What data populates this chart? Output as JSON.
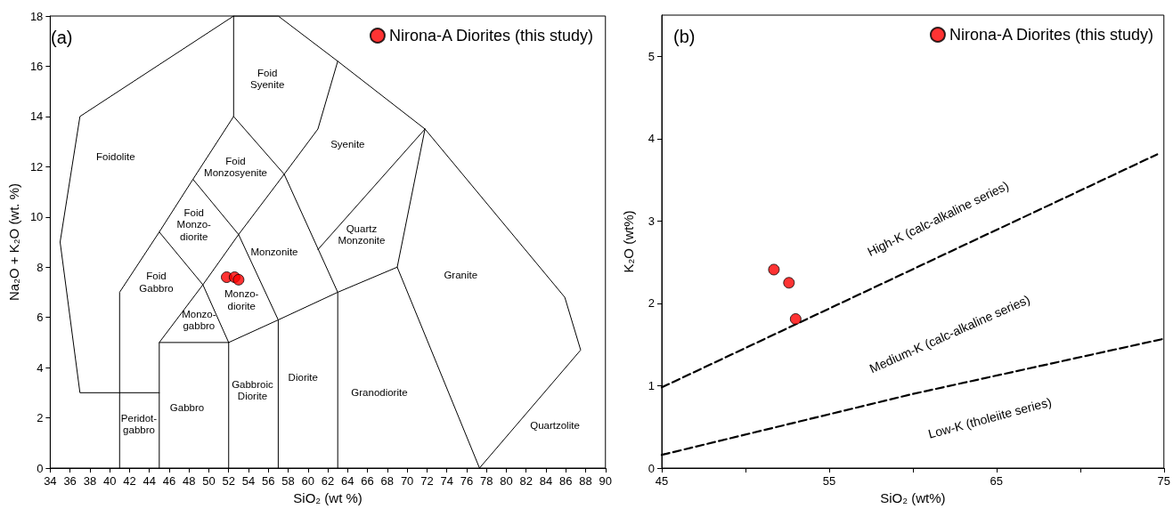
{
  "chart_data": [
    {
      "type": "scatter",
      "xlabel": "SiO₂ (wt %)",
      "ylabel": "Na₂O + K₂O (wt. %)",
      "xlim": [
        34,
        90
      ],
      "xticks": [
        34,
        36,
        38,
        40,
        42,
        44,
        46,
        48,
        50,
        52,
        54,
        56,
        58,
        60,
        62,
        64,
        66,
        68,
        70,
        72,
        74,
        76,
        78,
        80,
        82,
        84,
        86,
        88,
        90
      ],
      "ylim": [
        0,
        18
      ],
      "yticks": [
        0,
        2,
        4,
        6,
        8,
        10,
        12,
        14,
        16,
        18
      ],
      "grid": false,
      "legend": "top right",
      "line_style": "solid",
      "series": [
        {
          "name": "Nirona-A Diorites (this study)",
          "marker": "circle",
          "color": "#ff0000",
          "x": [
            51.8,
            52.6,
            53.0
          ],
          "values": [
            7.6,
            7.6,
            7.5
          ]
        },
        {
          "type": "line",
          "marker": "none",
          "color": "#000000",
          "x": [
            45,
            37,
            35,
            37,
            52.5,
            57,
            63,
            71.8,
            85.9,
            87.5,
            77.3
          ],
          "values": [
            3,
            3,
            9,
            14,
            18,
            18,
            16.2,
            13.5,
            6.8,
            4.7,
            0
          ]
        },
        {
          "type": "line",
          "marker": "none",
          "color": "#000000",
          "x": [
            41,
            41,
            45,
            48.4,
            52.5,
            52.5
          ],
          "values": [
            0,
            7,
            9.4,
            11.5,
            14,
            18
          ]
        },
        {
          "type": "line",
          "marker": "none",
          "color": "#000000",
          "x": [
            45,
            45,
            52,
            52
          ],
          "values": [
            0,
            5,
            5,
            0
          ]
        },
        {
          "type": "line",
          "marker": "none",
          "color": "#000000",
          "x": [
            45,
            49.4,
            45
          ],
          "values": [
            5,
            7.3,
            9.4
          ]
        },
        {
          "type": "line",
          "marker": "none",
          "color": "#000000",
          "x": [
            52,
            49.4,
            53,
            48.4
          ],
          "values": [
            5,
            7.3,
            9.3,
            11.5
          ]
        },
        {
          "type": "line",
          "marker": "none",
          "color": "#000000",
          "x": [
            52,
            57,
            63,
            69,
            71.8
          ],
          "values": [
            5,
            5.9,
            7,
            8,
            13.5
          ]
        },
        {
          "type": "line",
          "marker": "none",
          "color": "#000000",
          "x": [
            57,
            57,
            53,
            57.6,
            52.5
          ],
          "values": [
            0,
            5.9,
            9.3,
            11.7,
            14
          ]
        },
        {
          "type": "line",
          "marker": "none",
          "color": "#000000",
          "x": [
            63,
            63,
            57.6,
            61,
            63
          ],
          "values": [
            0,
            7,
            11.7,
            13.5,
            16.2
          ]
        },
        {
          "type": "line",
          "marker": "none",
          "color": "#000000",
          "x": [
            61,
            71.8
          ],
          "values": [
            8.7,
            13.5
          ]
        },
        {
          "type": "line",
          "marker": "none",
          "color": "#000000",
          "x": [
            69,
            77.3
          ],
          "values": [
            8,
            0
          ]
        }
      ],
      "annotations": [
        "(a)",
        "Foidolite",
        "Foid\nSyenite",
        "Foid\nMonzosyenite",
        "Foid\nMonzo-\ndiorite",
        "Foid\nGabbro",
        "Monzonite",
        "Monzo-\ndiorite",
        "Monzo-\ngabbro",
        "Peridot-\ngabbro",
        "Gabbro",
        "Gabbroic\nDiorite",
        "Diorite",
        "Syenite",
        "Quartz\nMonzonite",
        "Granite",
        "Granodiorite",
        "Quartzolite"
      ]
    },
    {
      "type": "scatter",
      "xlabel": "SiO₂ (wt%)",
      "ylabel": "K₂O (wt%)",
      "xlim": [
        45,
        75
      ],
      "xticks": [
        45,
        {
          "value": 50,
          "label": null
        },
        55,
        {
          "value": 60,
          "label": null
        },
        65,
        {
          "value": 70,
          "label": null
        },
        75
      ],
      "ylim": [
        0,
        5.5
      ],
      "yticks": [
        0,
        1,
        2,
        3,
        4,
        5
      ],
      "grid": false,
      "legend": "top right",
      "line_style": "dashed",
      "series": [
        {
          "name": "Nirona-A Diorites (this study)",
          "marker": "circle",
          "color": "#ff0000",
          "x": [
            51.7,
            52.6,
            53.0
          ],
          "values": [
            2.41,
            2.25,
            1.81
          ]
        },
        {
          "type": "line",
          "marker": "none",
          "color": "#000000",
          "x": [
            45,
            74.6
          ],
          "values": [
            0.98,
            3.81
          ]
        },
        {
          "type": "line",
          "marker": "none",
          "color": "#000000",
          "x": [
            45,
            60,
            75
          ],
          "values": [
            0.16,
            0.9,
            1.57
          ]
        }
      ],
      "annotations": [
        "(b)",
        "High-K (calc-alkaline series)",
        "Medium-K (calc-alkaline series)",
        "Low-K (tholeiite series)"
      ]
    }
  ]
}
